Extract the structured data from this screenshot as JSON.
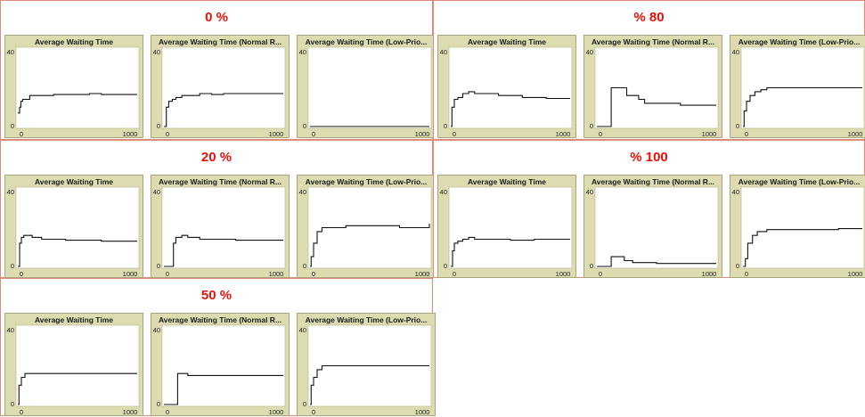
{
  "panels": [
    {
      "title": "0 %",
      "chart_data": [
        {
          "type": "line",
          "title": "Average Waiting Time",
          "ylim": [
            0,
            40
          ],
          "xlim": [
            0,
            1000
          ],
          "x": [
            0,
            15,
            25,
            40,
            60,
            100,
            150,
            200,
            300,
            400,
            500,
            600,
            700,
            800,
            900,
            1000
          ],
          "values": [
            7,
            10,
            13,
            14,
            14,
            16,
            16,
            16,
            16.5,
            16.5,
            16.5,
            17,
            16.5,
            16.5,
            16.5,
            16.5
          ]
        },
        {
          "type": "line",
          "title": "Average Waiting Time (Normal R...",
          "ylim": [
            0,
            40
          ],
          "xlim": [
            0,
            1000
          ],
          "x": [
            0,
            10,
            20,
            40,
            70,
            100,
            150,
            200,
            300,
            400,
            500,
            600,
            700,
            800,
            900,
            1000
          ],
          "values": [
            0,
            0,
            10,
            13,
            14,
            15,
            16,
            16,
            17,
            16.5,
            17,
            17,
            17,
            17,
            17,
            17
          ]
        },
        {
          "type": "line",
          "title": "Average Waiting Time (Low-Prio...",
          "ylim": [
            0,
            40
          ],
          "xlim": [
            0,
            1000
          ],
          "x": [
            0,
            1000
          ],
          "values": [
            0,
            0
          ]
        }
      ]
    },
    {
      "title": "% 80",
      "chart_data": [
        {
          "type": "line",
          "title": "Average Waiting Time",
          "ylim": [
            0,
            40
          ],
          "xlim": [
            0,
            1000
          ],
          "x": [
            0,
            10,
            30,
            60,
            100,
            150,
            200,
            300,
            400,
            500,
            600,
            700,
            800,
            900,
            1000
          ],
          "values": [
            0,
            10,
            14,
            15,
            17,
            18,
            17,
            17,
            16,
            16,
            15,
            15,
            14.5,
            14.5,
            14.5
          ]
        },
        {
          "type": "line",
          "title": "Average Waiting Time (Normal R...",
          "ylim": [
            0,
            40
          ],
          "xlim": [
            0,
            1000
          ],
          "x": [
            0,
            100,
            120,
            200,
            250,
            300,
            350,
            400,
            500,
            600,
            700,
            800,
            900,
            1000
          ],
          "values": [
            0,
            0,
            20,
            20,
            16,
            16,
            14,
            12,
            12,
            12,
            11,
            11,
            11,
            11
          ]
        },
        {
          "type": "line",
          "title": "Average Waiting Time (Low-Prio...",
          "ylim": [
            0,
            40
          ],
          "xlim": [
            0,
            1000
          ],
          "x": [
            0,
            10,
            30,
            60,
            100,
            150,
            200,
            300,
            400,
            500,
            600,
            700,
            800,
            900,
            1000
          ],
          "values": [
            0,
            8,
            13,
            16,
            18,
            19,
            20,
            20,
            20,
            20,
            20,
            20,
            20,
            20,
            20
          ]
        }
      ]
    },
    {
      "title": "20 %",
      "chart_data": [
        {
          "type": "line",
          "title": "Average Waiting Time",
          "ylim": [
            0,
            40
          ],
          "xlim": [
            0,
            1000
          ],
          "x": [
            0,
            15,
            30,
            50,
            80,
            120,
            200,
            300,
            400,
            500,
            600,
            700,
            800,
            900,
            1000
          ],
          "values": [
            0,
            12,
            15,
            16,
            16,
            15,
            14,
            14,
            13.5,
            13.5,
            13.5,
            13,
            13,
            13,
            13
          ]
        },
        {
          "type": "line",
          "title": "Average Waiting Time (Normal R...",
          "ylim": [
            0,
            40
          ],
          "xlim": [
            0,
            1000
          ],
          "x": [
            0,
            50,
            80,
            100,
            150,
            200,
            300,
            400,
            500,
            600,
            700,
            800,
            900,
            1000
          ],
          "values": [
            0,
            0,
            12,
            15,
            16,
            15,
            14,
            14,
            14,
            13.5,
            13.5,
            13.5,
            13.5,
            13.5
          ]
        },
        {
          "type": "line",
          "title": "Average Waiting Time (Low-Prio...",
          "ylim": [
            0,
            40
          ],
          "xlim": [
            0,
            1000
          ],
          "x": [
            0,
            10,
            30,
            60,
            100,
            200,
            300,
            400,
            500,
            600,
            700,
            750,
            800,
            900,
            1000
          ],
          "values": [
            0,
            5,
            12,
            18,
            20,
            20,
            21,
            21,
            21,
            21,
            21,
            20,
            20,
            20,
            22
          ]
        }
      ]
    },
    {
      "title": "% 100",
      "chart_data": [
        {
          "type": "line",
          "title": "Average Waiting Time",
          "ylim": [
            0,
            40
          ],
          "xlim": [
            0,
            1000
          ],
          "x": [
            0,
            15,
            30,
            60,
            100,
            150,
            200,
            300,
            400,
            500,
            600,
            700,
            800,
            900,
            1000
          ],
          "values": [
            0,
            8,
            12,
            13,
            14,
            15,
            14,
            14,
            14,
            13.5,
            13.5,
            14,
            14,
            14,
            14
          ]
        },
        {
          "type": "line",
          "title": "Average Waiting Time (Normal R...",
          "ylim": [
            0,
            40
          ],
          "xlim": [
            0,
            1000
          ],
          "x": [
            0,
            100,
            120,
            180,
            230,
            300,
            400,
            500,
            600,
            700,
            800,
            900,
            1000
          ],
          "values": [
            0,
            0,
            5,
            5,
            3,
            2,
            2,
            1.5,
            1.5,
            1.5,
            1.5,
            1.5,
            1.5
          ]
        },
        {
          "type": "line",
          "title": "Average Waiting Time (Low-Prio...",
          "ylim": [
            0,
            40
          ],
          "xlim": [
            0,
            1000
          ],
          "x": [
            0,
            20,
            40,
            80,
            120,
            200,
            300,
            400,
            500,
            600,
            700,
            800,
            900,
            1000
          ],
          "values": [
            0,
            4,
            12,
            16,
            18,
            19,
            19,
            19,
            19,
            19,
            19,
            19.5,
            19.5,
            19.5
          ]
        }
      ]
    },
    {
      "title": "50 %",
      "chart_data": [
        {
          "type": "line",
          "title": "Average Waiting Time",
          "ylim": [
            0,
            40
          ],
          "xlim": [
            0,
            1000
          ],
          "x": [
            0,
            10,
            30,
            60,
            100,
            200,
            300,
            400,
            500,
            600,
            700,
            800,
            900,
            1000
          ],
          "values": [
            0,
            10,
            14,
            16,
            16,
            16,
            16,
            16,
            16,
            16,
            16,
            16,
            16,
            16
          ]
        },
        {
          "type": "line",
          "title": "Average Waiting Time (Normal R...",
          "ylim": [
            0,
            40
          ],
          "xlim": [
            0,
            1000
          ],
          "x": [
            0,
            100,
            115,
            200,
            250,
            300,
            400,
            500,
            600,
            700,
            800,
            900,
            1000
          ],
          "values": [
            0,
            0,
            16,
            15,
            15,
            15,
            15,
            15,
            15,
            15,
            15,
            15,
            15
          ]
        },
        {
          "type": "line",
          "title": "Average Waiting Time (Low-Prio...",
          "ylim": [
            0,
            40
          ],
          "xlim": [
            0,
            1000
          ],
          "x": [
            0,
            10,
            30,
            60,
            100,
            200,
            300,
            400,
            500,
            600,
            700,
            800,
            900,
            1000
          ],
          "values": [
            0,
            10,
            14,
            18,
            20,
            20,
            20,
            20,
            20,
            20,
            20,
            20,
            20,
            20
          ]
        }
      ]
    }
  ],
  "axis": {
    "y_min_label": "0",
    "y_max_label": "40",
    "x_min_label": "0",
    "x_max_label": "1000"
  }
}
